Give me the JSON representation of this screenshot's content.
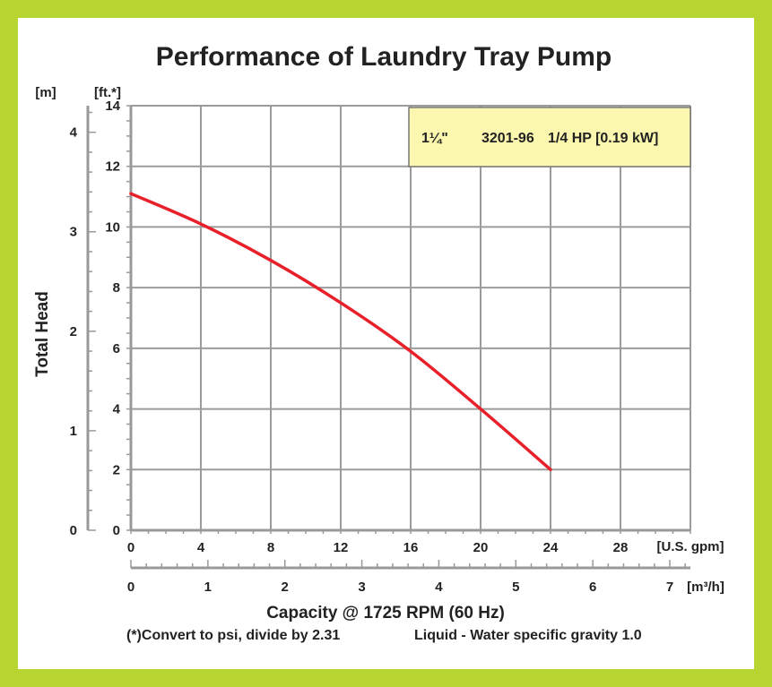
{
  "chart_data": {
    "type": "line",
    "title": "Performance of Laundry Tray Pump",
    "xlabel": "Capacity @ 1725 RPM (60 Hz)",
    "ylabel": "Total Head",
    "x_unit_primary": "[U.S. gpm]",
    "x_unit_secondary": "[m³/h]",
    "y_unit_primary": "[ft.*]",
    "y_unit_secondary": "[m]",
    "xlim": [
      0,
      32
    ],
    "ylim": [
      0,
      14
    ],
    "x_ticks": [
      "0",
      "4",
      "8",
      "12",
      "16",
      "20",
      "24",
      "28"
    ],
    "y_ticks": [
      "0",
      "2",
      "4",
      "6",
      "8",
      "10",
      "12",
      "14"
    ],
    "x2_ticks": [
      "0",
      "1",
      "2",
      "3",
      "4",
      "5",
      "6",
      "7"
    ],
    "y2_ticks": [
      "0",
      "1",
      "2",
      "3",
      "4"
    ],
    "grid": true,
    "series": [
      {
        "name": "",
        "color": "#e8202a",
        "x": [
          0,
          4,
          8,
          12,
          16,
          20,
          24
        ],
        "y": [
          11.1,
          10.1,
          8.9,
          7.5,
          5.9,
          4.0,
          2.0
        ]
      }
    ],
    "spec_box": {
      "size": "1¼\"",
      "model": "3201-96",
      "power": "1/4 HP [0.19 kW]",
      "background": "#fbf7ae"
    },
    "footnote_1": "(*)Convert to psi, divide by 2.31",
    "footnote_2": "Liquid - Water specific gravity 1.0"
  }
}
